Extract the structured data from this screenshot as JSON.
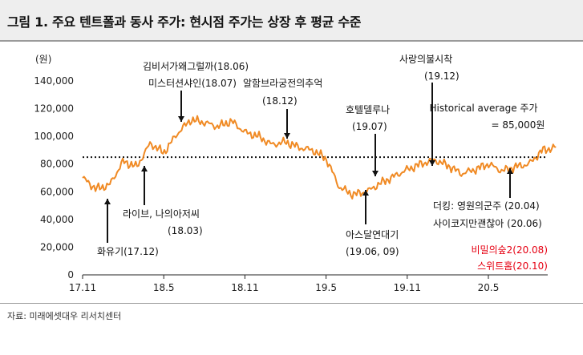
{
  "figure": {
    "title": "그림 1. 주요 텐트폴과 동사 주가: 현시점 주가는 상장 후 평균 수준",
    "source": "자료: 미래에셋대우 리서치센터"
  },
  "chart_data": {
    "type": "line",
    "ylabel": "(원)",
    "ylim": [
      0,
      140000
    ],
    "yticks": [
      "0",
      "20,000",
      "40,000",
      "60,000",
      "80,000",
      "100,000",
      "120,000",
      "140,000"
    ],
    "xticks": [
      "17.11",
      "18.5",
      "18.11",
      "19.5",
      "19.11",
      "20.5"
    ],
    "series": [
      {
        "color": "#f08a24",
        "x": [
          "17.11",
          "17.12",
          "18.01",
          "18.02",
          "18.03",
          "18.04",
          "18.05",
          "18.06",
          "18.07",
          "18.08",
          "18.09",
          "18.10",
          "18.11",
          "18.12",
          "19.01",
          "19.02",
          "19.03",
          "19.04",
          "19.05",
          "19.06",
          "19.07",
          "19.08",
          "19.09",
          "19.10",
          "19.11",
          "19.12",
          "20.01",
          "20.02",
          "20.03",
          "20.04",
          "20.05",
          "20.06",
          "20.07",
          "20.08",
          "20.09",
          "20.10"
        ],
        "values": [
          70000,
          62000,
          65000,
          82000,
          78000,
          95000,
          88000,
          102000,
          112000,
          110000,
          107000,
          111000,
          103000,
          100000,
          94000,
          96000,
          92000,
          90000,
          84000,
          63000,
          58000,
          60000,
          66000,
          71000,
          76000,
          80000,
          83000,
          79000,
          73000,
          76000,
          80000,
          75000,
          78000,
          80000,
          90000,
          92000
        ]
      }
    ],
    "reference_line": {
      "value": 85000,
      "label": "Historical average 주가",
      "value_label": "= 85,000원"
    },
    "annotations": [
      {
        "text": "화유기(17.12)",
        "x": "17.12",
        "direction": "up"
      },
      {
        "text": "라이브, 나의아저씨",
        "text2": "(18.03)",
        "x": "18.03",
        "direction": "up"
      },
      {
        "text": "김비서가왜그럴까(18.06)",
        "text2": "미스터션샤인(18.07)",
        "x": "18.07",
        "direction": "down"
      },
      {
        "text": "알함브라궁전의추억",
        "text2": "(18.12)",
        "x": "18.12",
        "direction": "down"
      },
      {
        "text": "호텔델루나",
        "text2": "(19.07)",
        "x": "19.07",
        "direction": "down"
      },
      {
        "text": "아스달연대기",
        "text2": "(19.06, 09)",
        "x": "19.06",
        "direction": "up"
      },
      {
        "text": "사랑의불시착",
        "text2": "(19.12)",
        "x": "19.12",
        "direction": "down"
      },
      {
        "text": "더킹: 영원의군주 (20.04)",
        "text2": "사이코지만괜찮아 (20.06)",
        "x": "20.04",
        "direction": "up"
      },
      {
        "text": "비밀의숲2(20.08)",
        "text2": "스위트홈(20.10)",
        "color": "#e60012"
      }
    ]
  }
}
